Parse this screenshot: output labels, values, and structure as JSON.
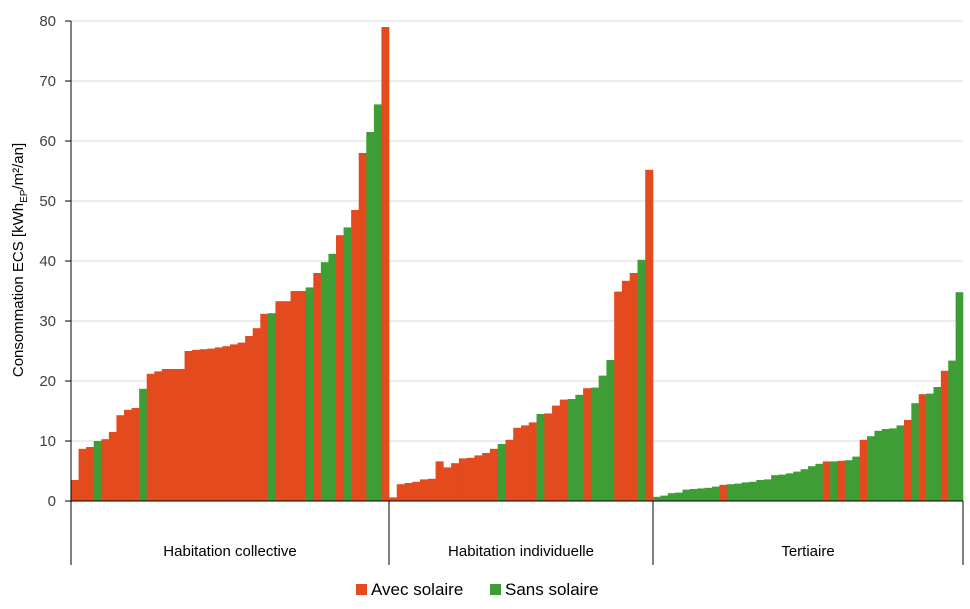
{
  "colors": {
    "avec": "#E34A1D",
    "sans": "#3E9E35",
    "grid": "#D9D9D9",
    "axis": "#000000"
  },
  "chart_data": {
    "type": "bar",
    "ylabel": {
      "main": "Consommation ECS [kWh",
      "sub": "EP",
      "tail": "/m²/an]"
    },
    "ylim": [
      0,
      80
    ],
    "yticks": [
      "0",
      "10",
      "20",
      "30",
      "40",
      "50",
      "60",
      "70",
      "80"
    ],
    "grid": true,
    "legend_position": "bottom",
    "series_names": {
      "avec": "Avec solaire",
      "sans": "Sans solaire"
    },
    "groups": [
      {
        "name": "Habitation collective",
        "bars": [
          {
            "v": 3.5,
            "s": "avec"
          },
          {
            "v": 8.7,
            "s": "avec"
          },
          {
            "v": 9.0,
            "s": "avec"
          },
          {
            "v": 10.0,
            "s": "sans"
          },
          {
            "v": 10.3,
            "s": "avec"
          },
          {
            "v": 11.5,
            "s": "avec"
          },
          {
            "v": 14.3,
            "s": "avec"
          },
          {
            "v": 15.2,
            "s": "avec"
          },
          {
            "v": 15.5,
            "s": "avec"
          },
          {
            "v": 18.7,
            "s": "sans"
          },
          {
            "v": 21.2,
            "s": "avec"
          },
          {
            "v": 21.6,
            "s": "avec"
          },
          {
            "v": 22.0,
            "s": "avec"
          },
          {
            "v": 22.0,
            "s": "avec"
          },
          {
            "v": 22.0,
            "s": "avec"
          },
          {
            "v": 25.0,
            "s": "avec"
          },
          {
            "v": 25.2,
            "s": "avec"
          },
          {
            "v": 25.3,
            "s": "avec"
          },
          {
            "v": 25.4,
            "s": "avec"
          },
          {
            "v": 25.6,
            "s": "avec"
          },
          {
            "v": 25.8,
            "s": "avec"
          },
          {
            "v": 26.1,
            "s": "avec"
          },
          {
            "v": 26.4,
            "s": "avec"
          },
          {
            "v": 27.5,
            "s": "avec"
          },
          {
            "v": 28.8,
            "s": "avec"
          },
          {
            "v": 31.2,
            "s": "avec"
          },
          {
            "v": 31.3,
            "s": "sans"
          },
          {
            "v": 33.3,
            "s": "avec"
          },
          {
            "v": 33.3,
            "s": "avec"
          },
          {
            "v": 35.0,
            "s": "avec"
          },
          {
            "v": 35.0,
            "s": "avec"
          },
          {
            "v": 35.6,
            "s": "sans"
          },
          {
            "v": 38.0,
            "s": "avec"
          },
          {
            "v": 39.8,
            "s": "sans"
          },
          {
            "v": 41.2,
            "s": "sans"
          },
          {
            "v": 44.3,
            "s": "avec"
          },
          {
            "v": 45.6,
            "s": "sans"
          },
          {
            "v": 48.5,
            "s": "avec"
          },
          {
            "v": 58.0,
            "s": "avec"
          },
          {
            "v": 61.5,
            "s": "sans"
          },
          {
            "v": 66.1,
            "s": "sans"
          },
          {
            "v": 79.0,
            "s": "avec"
          }
        ]
      },
      {
        "name": "Habitation individuelle",
        "bars": [
          {
            "v": 0.6,
            "s": "avec"
          },
          {
            "v": 2.8,
            "s": "avec"
          },
          {
            "v": 3.0,
            "s": "avec"
          },
          {
            "v": 3.2,
            "s": "avec"
          },
          {
            "v": 3.6,
            "s": "avec"
          },
          {
            "v": 3.7,
            "s": "avec"
          },
          {
            "v": 6.6,
            "s": "avec"
          },
          {
            "v": 5.6,
            "s": "avec"
          },
          {
            "v": 6.3,
            "s": "avec"
          },
          {
            "v": 7.1,
            "s": "avec"
          },
          {
            "v": 7.2,
            "s": "avec"
          },
          {
            "v": 7.6,
            "s": "avec"
          },
          {
            "v": 8.0,
            "s": "avec"
          },
          {
            "v": 8.7,
            "s": "avec"
          },
          {
            "v": 9.5,
            "s": "sans"
          },
          {
            "v": 10.2,
            "s": "avec"
          },
          {
            "v": 12.2,
            "s": "avec"
          },
          {
            "v": 12.6,
            "s": "avec"
          },
          {
            "v": 13.1,
            "s": "avec"
          },
          {
            "v": 14.5,
            "s": "sans"
          },
          {
            "v": 14.6,
            "s": "avec"
          },
          {
            "v": 15.9,
            "s": "avec"
          },
          {
            "v": 16.9,
            "s": "avec"
          },
          {
            "v": 17.0,
            "s": "sans"
          },
          {
            "v": 17.7,
            "s": "sans"
          },
          {
            "v": 18.8,
            "s": "avec"
          },
          {
            "v": 18.9,
            "s": "sans"
          },
          {
            "v": 20.9,
            "s": "sans"
          },
          {
            "v": 23.5,
            "s": "sans"
          },
          {
            "v": 34.9,
            "s": "avec"
          },
          {
            "v": 36.7,
            "s": "avec"
          },
          {
            "v": 38.0,
            "s": "avec"
          },
          {
            "v": 40.2,
            "s": "sans"
          },
          {
            "v": 55.2,
            "s": "avec"
          }
        ]
      },
      {
        "name": "Tertiaire",
        "bars": [
          {
            "v": 0.7,
            "s": "sans"
          },
          {
            "v": 0.9,
            "s": "sans"
          },
          {
            "v": 1.3,
            "s": "sans"
          },
          {
            "v": 1.4,
            "s": "sans"
          },
          {
            "v": 1.9,
            "s": "sans"
          },
          {
            "v": 2.0,
            "s": "sans"
          },
          {
            "v": 2.1,
            "s": "sans"
          },
          {
            "v": 2.2,
            "s": "sans"
          },
          {
            "v": 2.4,
            "s": "sans"
          },
          {
            "v": 2.7,
            "s": "avec"
          },
          {
            "v": 2.8,
            "s": "sans"
          },
          {
            "v": 2.9,
            "s": "sans"
          },
          {
            "v": 3.1,
            "s": "sans"
          },
          {
            "v": 3.2,
            "s": "sans"
          },
          {
            "v": 3.5,
            "s": "sans"
          },
          {
            "v": 3.6,
            "s": "sans"
          },
          {
            "v": 4.3,
            "s": "sans"
          },
          {
            "v": 4.4,
            "s": "sans"
          },
          {
            "v": 4.6,
            "s": "sans"
          },
          {
            "v": 4.9,
            "s": "sans"
          },
          {
            "v": 5.3,
            "s": "sans"
          },
          {
            "v": 5.8,
            "s": "sans"
          },
          {
            "v": 6.2,
            "s": "sans"
          },
          {
            "v": 6.6,
            "s": "avec"
          },
          {
            "v": 6.6,
            "s": "sans"
          },
          {
            "v": 6.7,
            "s": "avec"
          },
          {
            "v": 6.8,
            "s": "sans"
          },
          {
            "v": 7.4,
            "s": "sans"
          },
          {
            "v": 10.2,
            "s": "avec"
          },
          {
            "v": 10.8,
            "s": "sans"
          },
          {
            "v": 11.7,
            "s": "sans"
          },
          {
            "v": 12.0,
            "s": "sans"
          },
          {
            "v": 12.1,
            "s": "sans"
          },
          {
            "v": 12.6,
            "s": "sans"
          },
          {
            "v": 13.5,
            "s": "avec"
          },
          {
            "v": 16.3,
            "s": "sans"
          },
          {
            "v": 17.8,
            "s": "avec"
          },
          {
            "v": 17.9,
            "s": "sans"
          },
          {
            "v": 19.0,
            "s": "sans"
          },
          {
            "v": 21.7,
            "s": "avec"
          },
          {
            "v": 23.4,
            "s": "sans"
          },
          {
            "v": 34.8,
            "s": "sans"
          }
        ]
      }
    ]
  }
}
